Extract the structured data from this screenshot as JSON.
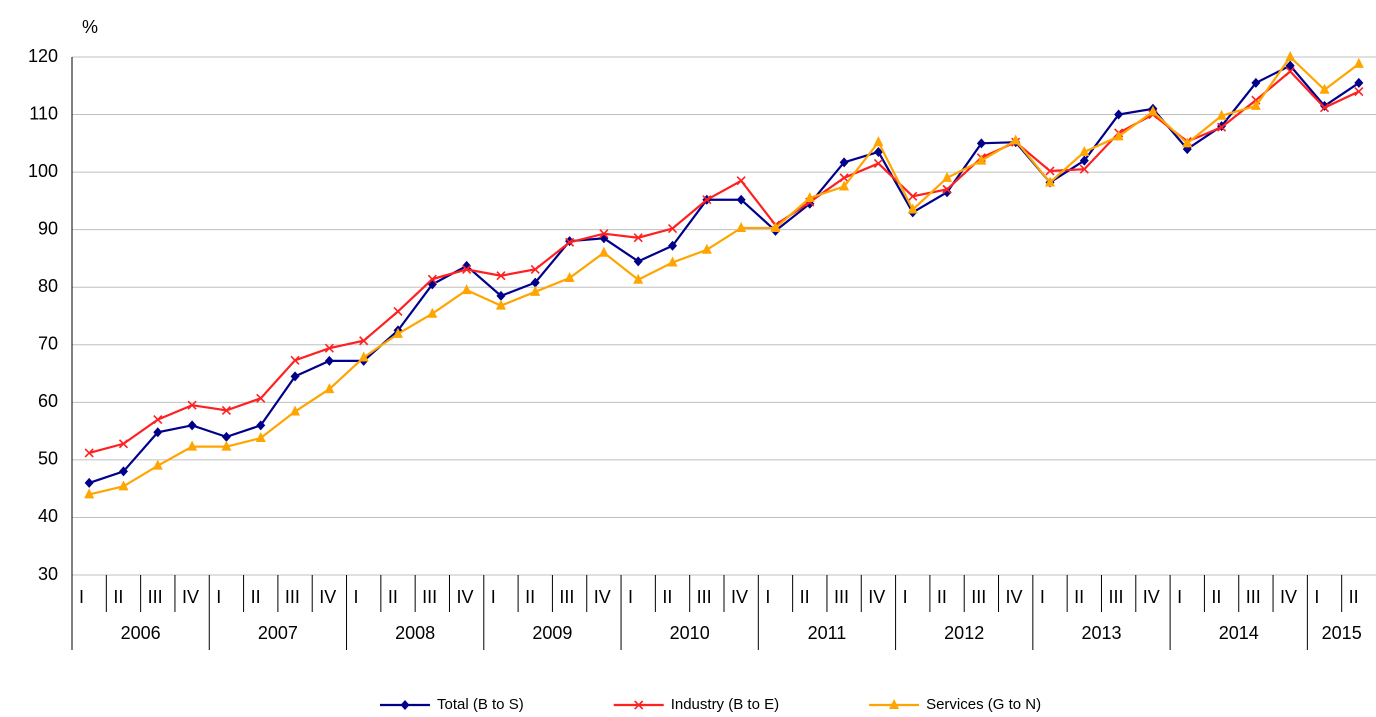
{
  "chart_data": {
    "type": "line",
    "y_label": "%",
    "categories": [
      "I",
      "II",
      "III",
      "IV",
      "I",
      "II",
      "III",
      "IV",
      "I",
      "II",
      "III",
      "IV",
      "I",
      "II",
      "III",
      "IV",
      "I",
      "II",
      "III",
      "IV",
      "I",
      "II",
      "III",
      "IV",
      "I",
      "II",
      "III",
      "IV",
      "I",
      "II",
      "III",
      "IV",
      "I",
      "II",
      "III",
      "IV",
      "I",
      "II"
    ],
    "groups": [
      "2006",
      "2007",
      "2008",
      "2009",
      "2010",
      "2011",
      "2012",
      "2013",
      "2014",
      "2015"
    ],
    "ylim": [
      30,
      120
    ],
    "yticks": [
      30,
      40,
      50,
      60,
      70,
      80,
      90,
      100,
      110,
      120
    ],
    "grid": true,
    "series": [
      {
        "name": "Total (B to S)",
        "color": "#00008b",
        "marker": "diamond",
        "values": [
          46,
          48,
          54.8,
          56,
          54,
          56,
          64.5,
          67.2,
          67.2,
          72.5,
          80.5,
          83.7,
          78.5,
          80.8,
          88,
          88.5,
          84.5,
          87.2,
          95.2,
          95.2,
          89.8,
          94.5,
          101.7,
          103.5,
          93,
          96.5,
          105,
          105.2,
          98.2,
          102,
          110,
          111,
          104,
          108,
          115.5,
          118.5,
          111.5,
          115.5
        ]
      },
      {
        "name": "Industry (B to E)",
        "color": "#ff2020",
        "marker": "x",
        "values": [
          51.2,
          52.8,
          57,
          59.5,
          58.6,
          60.7,
          67.3,
          69.4,
          70.7,
          75.8,
          81.4,
          83.1,
          82,
          83.1,
          87.8,
          89.3,
          88.6,
          90.2,
          95.2,
          98.5,
          90.8,
          94.8,
          99,
          101.5,
          95.8,
          97,
          102.5,
          105.2,
          100.2,
          100.5,
          106.8,
          110,
          105.3,
          107.8,
          112.5,
          117.5,
          111.2,
          114
        ]
      },
      {
        "name": "Services (G to N)",
        "color": "#ffa500",
        "marker": "triangle",
        "values": [
          44,
          45.4,
          49,
          52.3,
          52.3,
          53.8,
          58.4,
          62.3,
          67.8,
          71.9,
          75.4,
          79.5,
          76.8,
          79.2,
          81.6,
          86,
          81.3,
          84.3,
          86.5,
          90.3,
          90.3,
          95.5,
          97.5,
          105.2,
          93.5,
          99,
          102,
          105.5,
          98.2,
          103.5,
          106.2,
          110.5,
          105,
          109.8,
          111.5,
          120,
          114.3,
          118.8
        ]
      }
    ]
  }
}
